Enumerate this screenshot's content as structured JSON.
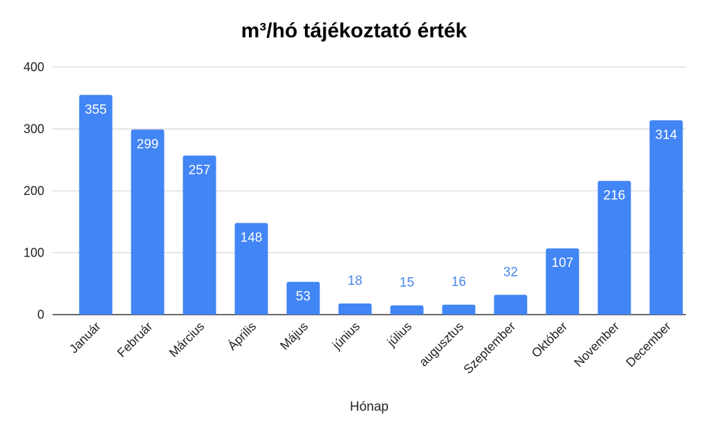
{
  "chart_data": {
    "type": "bar",
    "title": "m³/hó tájékoztató érték",
    "xlabel": "Hónap",
    "ylabel": "",
    "ylim": [
      0,
      400
    ],
    "yticks": [
      0,
      100,
      200,
      300,
      400
    ],
    "grid": true,
    "categories": [
      "Január",
      "Február",
      "Március",
      "Április",
      "Május",
      "június",
      "július",
      "augusztus",
      "Szeptember",
      "Október",
      "November",
      "December"
    ],
    "values": [
      355,
      299,
      257,
      148,
      53,
      18,
      15,
      16,
      32,
      107,
      216,
      314
    ],
    "bar_color": "#4285f4",
    "label_color_outside": "#4a86e8"
  }
}
